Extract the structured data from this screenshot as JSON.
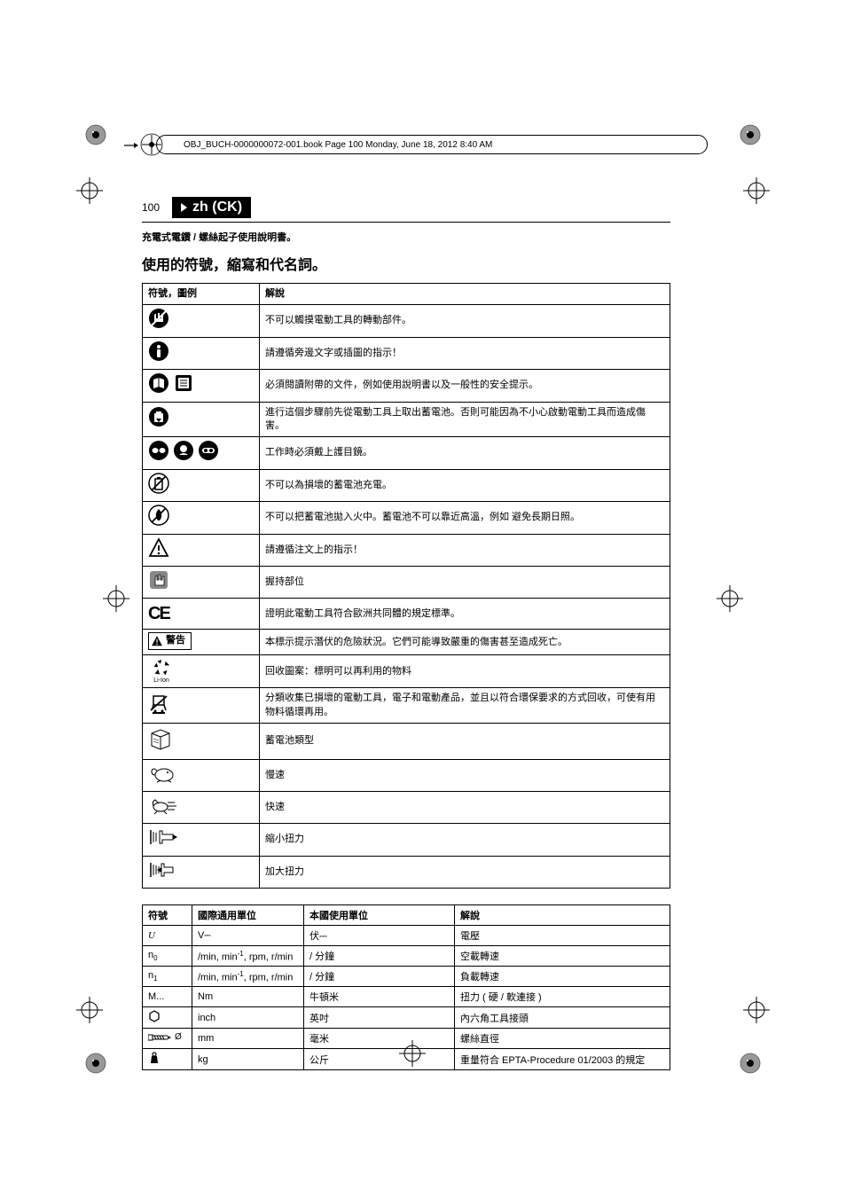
{
  "frame_text": "OBJ_BUCH-0000000072-001.book  Page 100  Monday, June 18, 2012  8:40 AM",
  "page_number": "100",
  "lang_tag": "zh (CK)",
  "subtitle": "充電式電鑽 / 螺絲起子使用說明書。",
  "section_title": "使用的符號，縮寫和代名詞。",
  "table1": {
    "headers": [
      "符號，圖例",
      "解說"
    ],
    "rows": [
      {
        "icon": "no-touch",
        "text": "不可以觸摸電動工具的轉動部件。"
      },
      {
        "icon": "info",
        "text": "請遵循旁邊文字或插圖的指示！"
      },
      {
        "icon": "read-docs",
        "text": "必須閱讀附帶的文件，例如使用說明書以及一般性的安全提示。"
      },
      {
        "icon": "remove-batt",
        "text": "進行這個步驟前先從電動工具上取出蓄電池。否則可能因為不小心啟動電動工具而造成傷害。"
      },
      {
        "icon": "goggles",
        "text": "工作時必須戴上護目鏡。"
      },
      {
        "icon": "no-charge",
        "text": "不可以為損壞的蓄電池充電。"
      },
      {
        "icon": "no-fire",
        "text": "不可以把蓄電池拋入火中。蓄電池不可以靠近高溫，例如 避免長期日照。"
      },
      {
        "icon": "caution",
        "text": "請遵循注文上的指示！"
      },
      {
        "icon": "grip",
        "text": "握持部位"
      },
      {
        "icon": "ce",
        "text": "證明此電動工具符合歐洲共同體的規定標準。"
      },
      {
        "icon": "warning",
        "text": "本標示提示潛伏的危險狀況。它們可能導致嚴重的傷害甚至造成死亡。"
      },
      {
        "icon": "recycle",
        "text": "回收圖案：標明可以再利用的物料"
      },
      {
        "icon": "weee",
        "text": "分類收集已損壞的電動工具，電子和電動產品，並且以符合環保要求的方式回收，可使有用物料循環再用。"
      },
      {
        "icon": "battery",
        "text": "蓄電池類型"
      },
      {
        "icon": "slow",
        "text": "慢速"
      },
      {
        "icon": "fast",
        "text": "快速"
      },
      {
        "icon": "torque-low",
        "text": "縮小扭力"
      },
      {
        "icon": "torque-high",
        "text": "加大扭力"
      }
    ]
  },
  "warning_label": "警告",
  "recycle_sub": "Li-Ion",
  "table2": {
    "headers": [
      "符號",
      "國際通用單位",
      "本國使用單位",
      "解說"
    ],
    "rows": [
      {
        "sym": "U",
        "sym_style": "ital",
        "intl": "V⎓",
        "local": "伏⎓",
        "desc": "電壓"
      },
      {
        "sym": "n0",
        "sym_style": "sub0",
        "intl": "/min, min⁻¹, rpm, r/min",
        "local": "/ 分鐘",
        "desc": "空載轉速"
      },
      {
        "sym": "n1",
        "sym_style": "sub1",
        "intl": "/min, min⁻¹, rpm, r/min",
        "local": "/ 分鐘",
        "desc": "負載轉速"
      },
      {
        "sym": "M...",
        "intl": "Nm",
        "local": "牛頓米",
        "desc": "扭力 ( 硬 / 軟連接 )"
      },
      {
        "sym": "hex",
        "sym_style": "hexicon",
        "intl": "inch",
        "local": "英吋",
        "desc": "內六角工具接頭"
      },
      {
        "sym": "screw",
        "sym_style": "screwicon",
        "intl": "mm",
        "local": "毫米",
        "desc": "螺絲直徑"
      },
      {
        "sym": "weight",
        "sym_style": "weighticon",
        "intl": "kg",
        "local": "公斤",
        "desc": "重量符合 EPTA-Procedure 01/2003 的規定"
      }
    ]
  },
  "colors": {
    "black": "#000000",
    "white": "#ffffff",
    "grey": "#888888"
  }
}
